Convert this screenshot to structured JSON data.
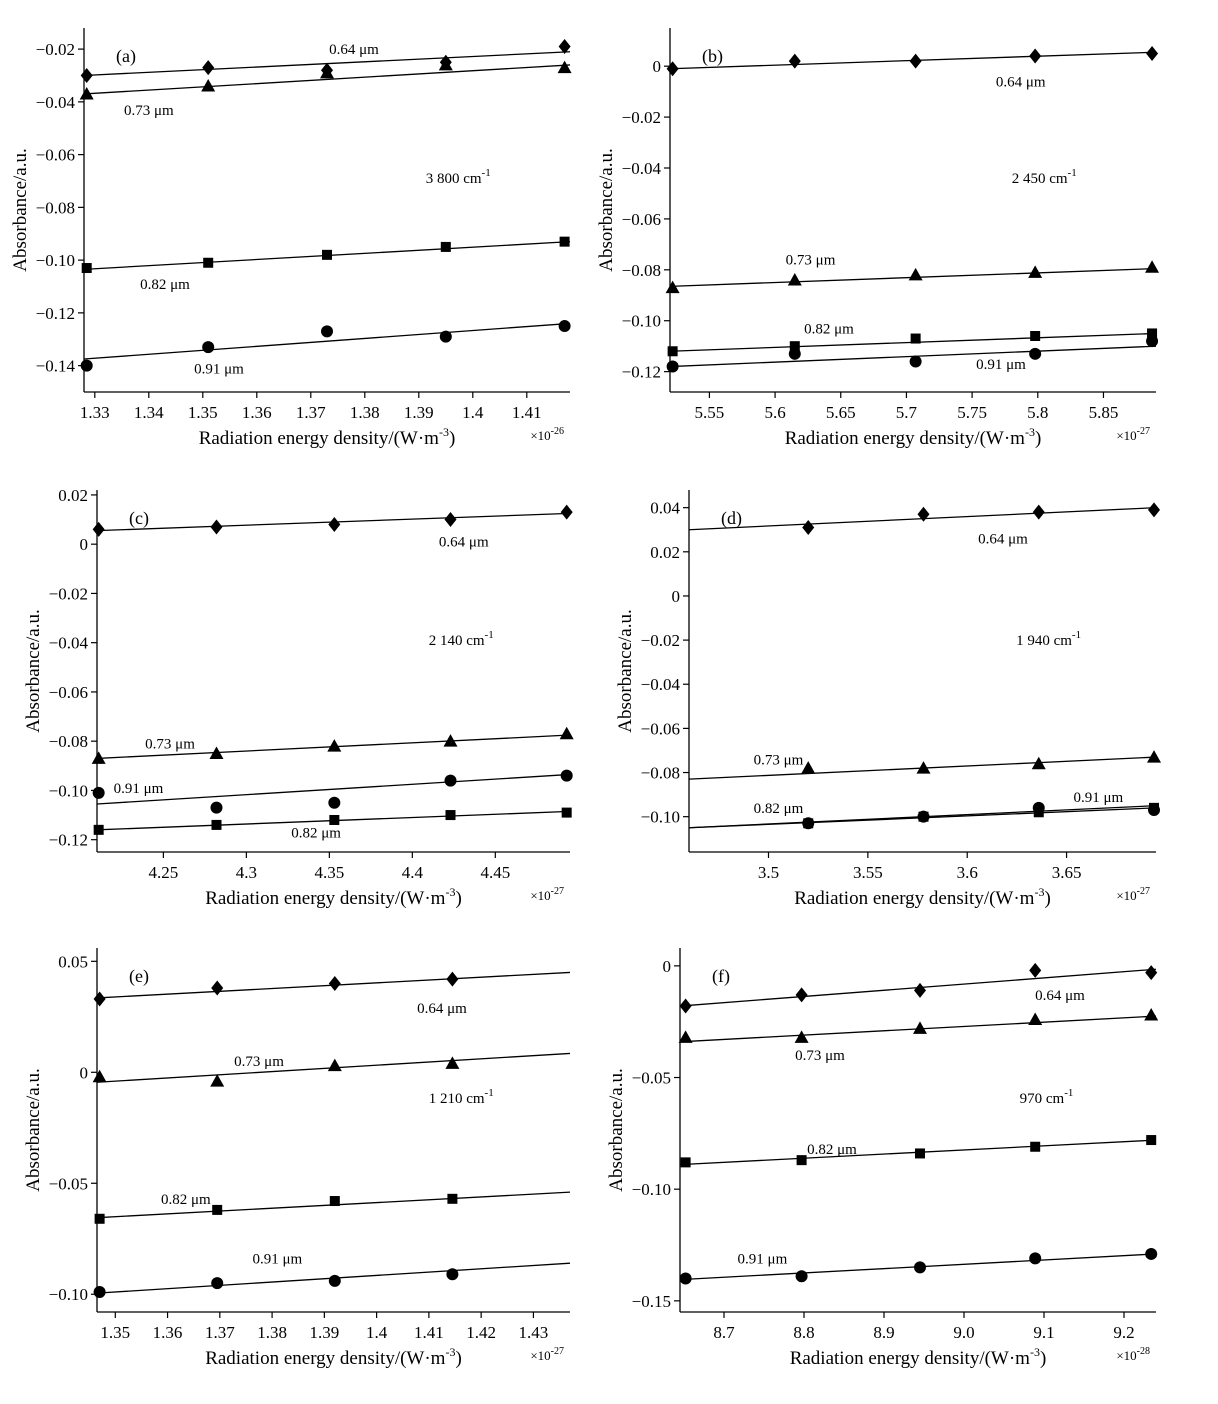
{
  "figure": {
    "panels_layout": "3 rows x 2 columns"
  },
  "chart_data": [
    {
      "type": "scatter",
      "panel_label": "(a)",
      "annotation": "3 800 cm",
      "annotation_sup": "-1",
      "xlabel": "Radiation energy density/(W·m",
      "xlabel_sup": "-3",
      "xlabel_end": ")",
      "ylabel": "Absorbance/a.u.",
      "x_multiplier": "×10",
      "x_multiplier_exp": "-26",
      "xlim": [
        1.328,
        1.418
      ],
      "ylim": [
        -0.15,
        -0.012
      ],
      "x_ticks": [
        1.33,
        1.34,
        1.35,
        1.36,
        1.37,
        1.38,
        1.39,
        1.4,
        1.41
      ],
      "x_tick_labels": [
        "1.33",
        "1.34",
        "1.35",
        "1.36",
        "1.37",
        "1.38",
        "1.39",
        "1.4",
        "1.41"
      ],
      "y_ticks": [
        -0.14,
        -0.12,
        -0.1,
        -0.08,
        -0.06,
        -0.04,
        -0.02
      ],
      "y_tick_labels": [
        "−0.14",
        "−0.12",
        "−0.10",
        "−0.08",
        "−0.06",
        "−0.04",
        "−0.02"
      ],
      "series": [
        {
          "name": "0.64 μm",
          "marker": "diamond",
          "x": [
            1.3285,
            1.351,
            1.373,
            1.395,
            1.417
          ],
          "y": [
            -0.03,
            -0.027,
            -0.028,
            -0.025,
            -0.019
          ],
          "fit": [
            [
              1.328,
              -0.03
            ],
            [
              1.418,
              -0.021
            ]
          ],
          "label_pos": [
            1.378,
            -0.02
          ]
        },
        {
          "name": "0.73 μm",
          "marker": "triangle",
          "x": [
            1.3285,
            1.351,
            1.373,
            1.395,
            1.417
          ],
          "y": [
            -0.037,
            -0.034,
            -0.029,
            -0.026,
            -0.027
          ],
          "fit": [
            [
              1.328,
              -0.037
            ],
            [
              1.418,
              -0.026
            ]
          ],
          "label_pos": [
            1.34,
            -0.043
          ]
        },
        {
          "name": "0.82 μm",
          "marker": "square",
          "x": [
            1.3285,
            1.351,
            1.373,
            1.395,
            1.417
          ],
          "y": [
            -0.103,
            -0.101,
            -0.098,
            -0.095,
            -0.093
          ],
          "fit": [
            [
              1.328,
              -0.1035
            ],
            [
              1.418,
              -0.093
            ]
          ],
          "label_pos": [
            1.343,
            -0.109
          ]
        },
        {
          "name": "0.91 μm",
          "marker": "circle",
          "x": [
            1.3285,
            1.351,
            1.373,
            1.395,
            1.417
          ],
          "y": [
            -0.14,
            -0.133,
            -0.127,
            -0.129,
            -0.125
          ],
          "fit": [
            [
              1.328,
              -0.1375
            ],
            [
              1.418,
              -0.124
            ]
          ],
          "label_pos": [
            1.353,
            -0.141
          ]
        }
      ]
    },
    {
      "type": "scatter",
      "panel_label": "(b)",
      "annotation": "2 450 cm",
      "annotation_sup": "-1",
      "xlabel": "Radiation energy density/(W·m",
      "xlabel_sup": "-3",
      "xlabel_end": ")",
      "ylabel": "Absorbance/a.u.",
      "x_multiplier": "×10",
      "x_multiplier_exp": "-27",
      "xlim": [
        5.52,
        5.89
      ],
      "ylim": [
        -0.128,
        0.015
      ],
      "x_ticks": [
        5.55,
        5.6,
        5.65,
        5.7,
        5.75,
        5.8,
        5.85
      ],
      "x_tick_labels": [
        "5.55",
        "5.6",
        "5.65",
        "5.7",
        "5.75",
        "5.8",
        "5.85"
      ],
      "y_ticks": [
        -0.12,
        -0.1,
        -0.08,
        -0.06,
        -0.04,
        -0.02,
        0
      ],
      "y_tick_labels": [
        "−0.12",
        "−0.10",
        "−0.08",
        "−0.06",
        "−0.04",
        "−0.02",
        "0"
      ],
      "series": [
        {
          "name": "0.64 μm",
          "marker": "diamond",
          "x": [
            5.522,
            5.615,
            5.707,
            5.798,
            5.887
          ],
          "y": [
            -0.001,
            0.002,
            0.002,
            0.004,
            0.005
          ],
          "fit": [
            [
              5.52,
              -0.001
            ],
            [
              5.89,
              0.0055
            ]
          ],
          "label_pos": [
            5.787,
            -0.006
          ]
        },
        {
          "name": "0.73 μm",
          "marker": "triangle",
          "x": [
            5.522,
            5.615,
            5.707,
            5.798,
            5.887
          ],
          "y": [
            -0.087,
            -0.084,
            -0.082,
            -0.081,
            -0.079
          ],
          "fit": [
            [
              5.52,
              -0.0865
            ],
            [
              5.89,
              -0.0795
            ]
          ],
          "label_pos": [
            5.627,
            -0.076
          ]
        },
        {
          "name": "0.82 μm",
          "marker": "square",
          "x": [
            5.522,
            5.615,
            5.707,
            5.798,
            5.887
          ],
          "y": [
            -0.112,
            -0.11,
            -0.107,
            -0.106,
            -0.105
          ],
          "fit": [
            [
              5.52,
              -0.112
            ],
            [
              5.89,
              -0.105
            ]
          ],
          "label_pos": [
            5.641,
            -0.103
          ]
        },
        {
          "name": "0.91 μm",
          "marker": "circle",
          "x": [
            5.522,
            5.615,
            5.707,
            5.798,
            5.887
          ],
          "y": [
            -0.118,
            -0.113,
            -0.116,
            -0.113,
            -0.108
          ],
          "fit": [
            [
              5.52,
              -0.118
            ],
            [
              5.89,
              -0.11
            ]
          ],
          "label_pos": [
            5.772,
            -0.117
          ]
        }
      ]
    },
    {
      "type": "scatter",
      "panel_label": "(c)",
      "annotation": "2 140 cm",
      "annotation_sup": "-1",
      "xlabel": "Radiation energy density/(W·m",
      "xlabel_sup": "-3",
      "xlabel_end": ")",
      "ylabel": "Absorbance/a.u.",
      "x_multiplier": "×10",
      "x_multiplier_exp": "-27",
      "xlim": [
        4.21,
        4.495
      ],
      "ylim": [
        -0.125,
        0.022
      ],
      "x_ticks": [
        4.25,
        4.3,
        4.35,
        4.4,
        4.45
      ],
      "x_tick_labels": [
        "4.25",
        "4.3",
        "4.35",
        "4.4",
        "4.45"
      ],
      "y_ticks": [
        -0.12,
        -0.1,
        -0.08,
        -0.06,
        -0.04,
        -0.02,
        0,
        0.02
      ],
      "y_tick_labels": [
        "−0.12",
        "−0.10",
        "−0.08",
        "−0.06",
        "−0.04",
        "−0.02",
        "0",
        "0.02"
      ],
      "series": [
        {
          "name": "0.64 μm",
          "marker": "diamond",
          "x": [
            4.211,
            4.282,
            4.353,
            4.423,
            4.493
          ],
          "y": [
            0.006,
            0.007,
            0.008,
            0.01,
            0.013
          ],
          "fit": [
            [
              4.21,
              0.0055
            ],
            [
              4.495,
              0.0125
            ]
          ],
          "label_pos": [
            4.431,
            0.001
          ]
        },
        {
          "name": "0.73 μm",
          "marker": "triangle",
          "x": [
            4.211,
            4.282,
            4.353,
            4.423,
            4.493
          ],
          "y": [
            -0.087,
            -0.085,
            -0.082,
            -0.08,
            -0.077
          ],
          "fit": [
            [
              4.21,
              -0.087
            ],
            [
              4.495,
              -0.0775
            ]
          ],
          "label_pos": [
            4.254,
            -0.081
          ]
        },
        {
          "name": "0.91 μm",
          "marker": "circle",
          "x": [
            4.211,
            4.282,
            4.353,
            4.423,
            4.493
          ],
          "y": [
            -0.101,
            -0.107,
            -0.105,
            -0.096,
            -0.094
          ],
          "fit": [
            [
              4.21,
              -0.1055
            ],
            [
              4.495,
              -0.0935
            ]
          ],
          "label_pos": [
            4.235,
            -0.099
          ]
        },
        {
          "name": "0.82 μm",
          "marker": "square",
          "x": [
            4.211,
            4.282,
            4.353,
            4.423,
            4.493
          ],
          "y": [
            -0.116,
            -0.114,
            -0.112,
            -0.11,
            -0.109
          ],
          "fit": [
            [
              4.21,
              -0.116
            ],
            [
              4.495,
              -0.1085
            ]
          ],
          "label_pos": [
            4.342,
            -0.117
          ]
        }
      ]
    },
    {
      "type": "scatter",
      "panel_label": "(d)",
      "annotation": "1 940 cm",
      "annotation_sup": "-1",
      "xlabel": "Radiation energy density/(W·m",
      "xlabel_sup": "-3",
      "xlabel_end": ")",
      "ylabel": "Absorbance/a.u.",
      "x_multiplier": "×10",
      "x_multiplier_exp": "-27",
      "xlim": [
        3.46,
        3.695
      ],
      "ylim": [
        -0.116,
        0.048
      ],
      "x_ticks": [
        3.5,
        3.55,
        3.6,
        3.65
      ],
      "x_tick_labels": [
        "3.5",
        "3.55",
        "3.6",
        "3.65"
      ],
      "y_ticks": [
        -0.1,
        -0.08,
        -0.06,
        -0.04,
        -0.02,
        0,
        0.02,
        0.04
      ],
      "y_tick_labels": [
        "−0.10",
        "−0.08",
        "−0.06",
        "−0.04",
        "−0.02",
        "0",
        "0.02",
        "0.04"
      ],
      "series": [
        {
          "name": "0.64 μm",
          "marker": "diamond",
          "x": [
            3.52,
            3.578,
            3.636,
            3.694
          ],
          "y": [
            0.031,
            0.037,
            0.038,
            0.039
          ],
          "fit": [
            [
              3.46,
              0.03
            ],
            [
              3.695,
              0.04
            ]
          ],
          "label_pos": [
            3.618,
            0.026
          ]
        },
        {
          "name": "0.73 μm",
          "marker": "triangle",
          "x": [
            3.52,
            3.578,
            3.636,
            3.694
          ],
          "y": [
            -0.078,
            -0.078,
            -0.076,
            -0.073
          ],
          "fit": [
            [
              3.46,
              -0.083
            ],
            [
              3.695,
              -0.073
            ]
          ],
          "label_pos": [
            3.505,
            -0.074
          ]
        },
        {
          "name": "0.91 μm",
          "marker": "circle",
          "x": [
            3.52,
            3.578,
            3.636,
            3.694
          ],
          "y": [
            -0.103,
            -0.1,
            -0.096,
            -0.097
          ],
          "fit": [
            [
              3.46,
              -0.105
            ],
            [
              3.695,
              -0.096
            ]
          ],
          "label_pos": [
            3.666,
            -0.091
          ]
        },
        {
          "name": "0.82 μm",
          "marker": "square",
          "x": [
            3.52,
            3.578,
            3.636,
            3.694
          ],
          "y": [
            -0.103,
            -0.1,
            -0.098,
            -0.096
          ],
          "fit": [
            [
              3.46,
              -0.105
            ],
            [
              3.695,
              -0.095
            ]
          ],
          "label_pos": [
            3.505,
            -0.096
          ]
        }
      ]
    },
    {
      "type": "scatter",
      "panel_label": "(e)",
      "annotation": "1 210 cm",
      "annotation_sup": "-1",
      "xlabel": "Radiation energy density/(W·m",
      "xlabel_sup": "-3",
      "xlabel_end": ")",
      "ylabel": "Absorbance/a.u.",
      "x_multiplier": "×10",
      "x_multiplier_exp": "-27",
      "xlim": [
        1.3465,
        1.437
      ],
      "ylim": [
        -0.108,
        0.056
      ],
      "x_ticks": [
        1.35,
        1.36,
        1.37,
        1.38,
        1.39,
        1.4,
        1.41,
        1.42,
        1.43
      ],
      "x_tick_labels": [
        "1.35",
        "1.36",
        "1.37",
        "1.38",
        "1.39",
        "1.4",
        "1.41",
        "1.42",
        "1.43"
      ],
      "y_ticks": [
        -0.1,
        -0.05,
        0,
        0.05
      ],
      "y_tick_labels": [
        "−0.10",
        "−0.05",
        "0",
        "0.05"
      ],
      "series": [
        {
          "name": "0.64 μm",
          "marker": "diamond",
          "x": [
            1.347,
            1.3695,
            1.392,
            1.4145
          ],
          "y": [
            0.033,
            0.038,
            0.04,
            0.042
          ],
          "fit": [
            [
              1.3465,
              0.0335
            ],
            [
              1.437,
              0.045
            ]
          ],
          "label_pos": [
            1.4125,
            0.029
          ]
        },
        {
          "name": "0.73 μm",
          "marker": "triangle",
          "x": [
            1.347,
            1.3695,
            1.392,
            1.4145
          ],
          "y": [
            -0.002,
            -0.004,
            0.003,
            0.004
          ],
          "fit": [
            [
              1.3465,
              -0.0045
            ],
            [
              1.437,
              0.0085
            ]
          ],
          "label_pos": [
            1.3775,
            0.005
          ]
        },
        {
          "name": "0.82 μm",
          "marker": "square",
          "x": [
            1.347,
            1.3695,
            1.392,
            1.4145
          ],
          "y": [
            -0.066,
            -0.062,
            -0.058,
            -0.057
          ],
          "fit": [
            [
              1.3465,
              -0.0655
            ],
            [
              1.437,
              -0.054
            ]
          ],
          "label_pos": [
            1.3635,
            -0.057
          ]
        },
        {
          "name": "0.91 μm",
          "marker": "circle",
          "x": [
            1.347,
            1.3695,
            1.392,
            1.4145
          ],
          "y": [
            -0.099,
            -0.095,
            -0.094,
            -0.091
          ],
          "fit": [
            [
              1.3465,
              -0.0995
            ],
            [
              1.437,
              -0.086
            ]
          ],
          "label_pos": [
            1.381,
            -0.084
          ]
        }
      ]
    },
    {
      "type": "scatter",
      "panel_label": "(f)",
      "annotation": "970 cm",
      "annotation_sup": "-1",
      "xlabel": "Radiation energy density/(W·m",
      "xlabel_sup": "-3",
      "xlabel_end": ")",
      "ylabel": "Absorbance/a.u.",
      "x_multiplier": "×10",
      "x_multiplier_exp": "-28",
      "xlim": [
        8.645,
        9.24
      ],
      "ylim": [
        -0.155,
        0.008
      ],
      "x_ticks": [
        8.7,
        8.8,
        8.9,
        9.0,
        9.1,
        9.2
      ],
      "x_tick_labels": [
        "8.7",
        "8.8",
        "8.9",
        "9.0",
        "9.1",
        "9.2"
      ],
      "y_ticks": [
        -0.15,
        -0.1,
        -0.05,
        0
      ],
      "y_tick_labels": [
        "−0.15",
        "−0.10",
        "−0.05",
        "0"
      ],
      "series": [
        {
          "name": "0.64 μm",
          "marker": "diamond",
          "x": [
            8.652,
            8.797,
            8.945,
            9.089,
            9.234
          ],
          "y": [
            -0.018,
            -0.013,
            -0.011,
            -0.002,
            -0.003
          ],
          "fit": [
            [
              8.645,
              -0.018
            ],
            [
              9.24,
              -0.0015
            ]
          ],
          "label_pos": [
            9.12,
            -0.013
          ]
        },
        {
          "name": "0.73 μm",
          "marker": "triangle",
          "x": [
            8.652,
            8.797,
            8.945,
            9.089,
            9.234
          ],
          "y": [
            -0.032,
            -0.032,
            -0.028,
            -0.024,
            -0.022
          ],
          "fit": [
            [
              8.645,
              -0.034
            ],
            [
              9.24,
              -0.0225
            ]
          ],
          "label_pos": [
            8.82,
            -0.04
          ]
        },
        {
          "name": "0.82 μm",
          "marker": "square",
          "x": [
            8.652,
            8.797,
            8.945,
            9.089,
            9.234
          ],
          "y": [
            -0.088,
            -0.087,
            -0.084,
            -0.081,
            -0.078
          ],
          "fit": [
            [
              8.645,
              -0.089
            ],
            [
              9.24,
              -0.078
            ]
          ],
          "label_pos": [
            8.835,
            -0.082
          ]
        },
        {
          "name": "0.91 μm",
          "marker": "circle",
          "x": [
            8.652,
            8.797,
            8.945,
            9.089,
            9.234
          ],
          "y": [
            -0.14,
            -0.139,
            -0.135,
            -0.131,
            -0.129
          ],
          "fit": [
            [
              8.645,
              -0.1405
            ],
            [
              9.24,
              -0.129
            ]
          ],
          "label_pos": [
            8.748,
            -0.131
          ]
        }
      ]
    }
  ]
}
